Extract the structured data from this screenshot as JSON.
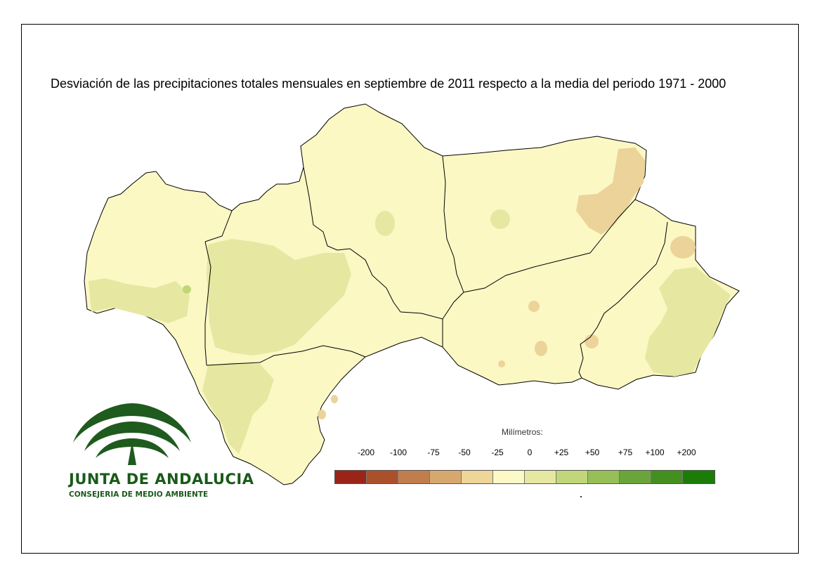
{
  "title": "Desviación de las precipitaciones totales mensuales en septiembre de 2011 respecto a la media del periodo 1971 - 2000",
  "legend": {
    "label": "Milímetros:",
    "ticks": [
      "-200",
      "-100",
      "-75",
      "-50",
      "-25",
      "0",
      "+25",
      "+50",
      "+75",
      "+100",
      "+200"
    ],
    "colors": [
      "#9b2418",
      "#aa512b",
      "#c17d4d",
      "#d7a86e",
      "#eed598",
      "#fcf9c6",
      "#e6e8a2",
      "#c0d679",
      "#96bf57",
      "#6aa539",
      "#43901f",
      "#1b7d07"
    ]
  },
  "logo": {
    "name": "JUNTA DE ANDALUCIA",
    "subtitle": "CONSEJERIA DE MEDIO AMBIENTE",
    "color": "#1f5a1f"
  },
  "map": {
    "base_color": "#fbf8c4",
    "wetter_color": "#e6e8a2",
    "drier_color": "#ecd39a",
    "border_color": "#000000"
  }
}
